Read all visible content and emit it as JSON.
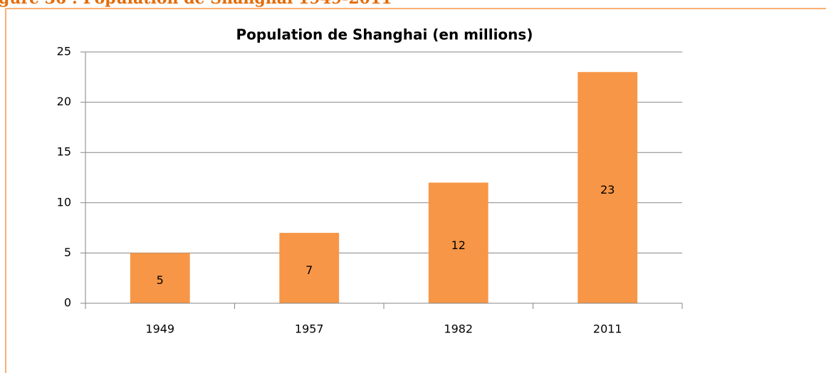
{
  "caption": "gure 36 : Population de Shanghai 1949-2011",
  "chart_data": {
    "type": "bar",
    "title": "Population de Shanghai (en millions)",
    "categories": [
      "1949",
      "1957",
      "1982",
      "2011"
    ],
    "values": [
      5,
      7,
      12,
      23
    ],
    "color": "#f79646",
    "ylim": [
      0,
      25
    ],
    "yticks": [
      0,
      5,
      10,
      15,
      20,
      25
    ],
    "grid": true
  }
}
